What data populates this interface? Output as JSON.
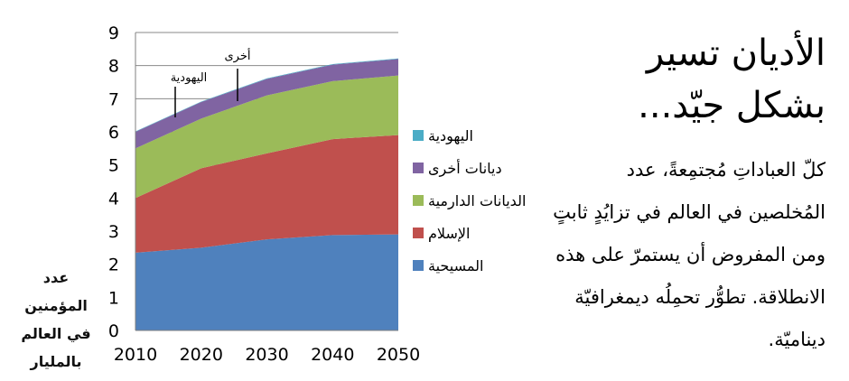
{
  "slide": {
    "title_line1": "الأديان تسير",
    "title_line2": "بشكل جيّد...",
    "body_lines": [
      "كلّ العباداتِ مُجتمِعةً، عدد",
      "المُخلصين في العالم في تزايُدٍ ثابتٍ",
      "ومن المفروض أن يستمرّ على هذه",
      "الانطلاقة. تطوُّر تحمِلُه ديمغرافيّة",
      "ديناميّة."
    ]
  },
  "chart_data": {
    "type": "area",
    "stacked": true,
    "x": [
      2010,
      2020,
      2030,
      2040,
      2050
    ],
    "ylim": [
      0,
      9
    ],
    "yticks": [
      0,
      1,
      2,
      3,
      4,
      5,
      6,
      7,
      8,
      9
    ],
    "ylabel_lines": [
      "عدد المؤمنين",
      "في العالم",
      "بالمليار"
    ],
    "grid": "horizontal",
    "legend_position": "right",
    "series": [
      {
        "name": "المسيحية",
        "color": "#4F81BD",
        "values": [
          2.35,
          2.5,
          2.75,
          2.88,
          2.9
        ]
      },
      {
        "name": "الإسلام",
        "color": "#C0504D",
        "values": [
          1.65,
          2.4,
          2.6,
          2.9,
          3.0
        ]
      },
      {
        "name": "الديانات الدارمية",
        "color": "#9BBB59",
        "values": [
          1.5,
          1.5,
          1.75,
          1.75,
          1.8
        ]
      },
      {
        "name": "ديانات أخرى",
        "color": "#8064A2",
        "values": [
          0.5,
          0.5,
          0.5,
          0.5,
          0.5
        ]
      },
      {
        "name": "اليهودية",
        "color": "#4BACC6",
        "values": [
          0.014,
          0.015,
          0.016,
          0.016,
          0.017
        ]
      }
    ],
    "legend_order": [
      "اليهودية",
      "ديانات أخرى",
      "الديانات الدارمية",
      "الإسلام",
      "المسيحية"
    ],
    "annotations": [
      "اليهودية",
      "أخرى"
    ]
  }
}
